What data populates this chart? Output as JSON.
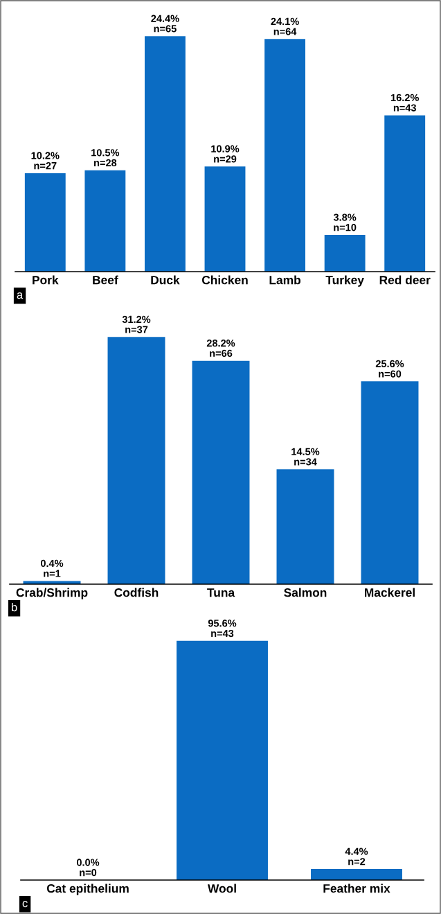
{
  "chart_data": [
    {
      "type": "bar",
      "categories": [
        "Pork",
        "Beef",
        "Duck",
        "Chicken",
        "Lamb",
        "Turkey",
        "Red deer"
      ],
      "values": [
        10.2,
        10.5,
        24.4,
        10.9,
        24.1,
        3.8,
        16.2
      ],
      "color": "#0b6cc3",
      "value_labels": [
        "10.2%\nn=27",
        "10.5%\nn=28",
        "24.4%\nn=65",
        "10.9%\nn=29",
        "24.1%\nn=64",
        "3.8%\nn=10",
        "16.2%\nn=43"
      ],
      "annotations": [
        "a"
      ]
    },
    {
      "type": "bar",
      "categories": [
        "Crab/Shrimp",
        "Codfish",
        "Tuna",
        "Salmon",
        "Mackerel"
      ],
      "values": [
        0.4,
        31.2,
        28.2,
        14.5,
        25.6
      ],
      "color": "#0b6cc3",
      "value_labels": [
        "0.4%\nn=1",
        "31.2%\nn=37",
        "28.2%\nn=66",
        "14.5%\nn=34",
        "25.6%\nn=60"
      ],
      "annotations": [
        "b"
      ]
    },
    {
      "type": "bar",
      "categories": [
        "Cat epithelium",
        "Wool",
        "Feather mix"
      ],
      "values": [
        0.0,
        95.6,
        4.4
      ],
      "color": "#0b6cc3",
      "value_labels": [
        "0.0%\nn=0",
        "95.6%\nn=43",
        "4.4%\nn=2"
      ],
      "annotations": [
        "c"
      ]
    }
  ]
}
